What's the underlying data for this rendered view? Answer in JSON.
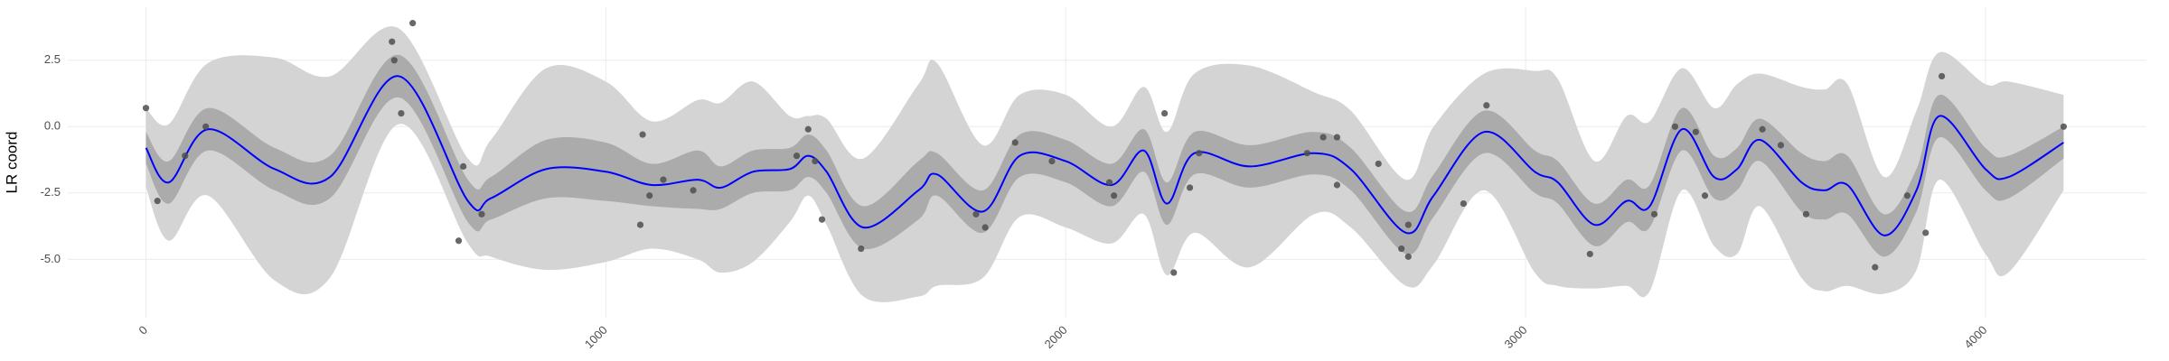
{
  "chart_data": {
    "type": "scatter",
    "y_label": "LR coord",
    "xlim": [
      -170,
      4350
    ],
    "ylim": [
      -7.2,
      4.5
    ],
    "xticks": [
      0,
      1000,
      2000,
      3000,
      4000
    ],
    "yticks": [
      2.5,
      {
        "value": 0,
        "label": "0.0"
      },
      -2.5,
      {
        "value": -5,
        "label": "-5.0"
      }
    ],
    "grid": true,
    "points": {
      "color": "#4d4d4d",
      "x": [
        0,
        25,
        85,
        130,
        535,
        580,
        540,
        555,
        680,
        690,
        730,
        1075,
        1080,
        1095,
        1125,
        1190,
        1415,
        1440,
        1455,
        1470,
        1555,
        1805,
        1825,
        1890,
        1970,
        2095,
        2105,
        2215,
        2235,
        2270,
        2290,
        2525,
        2560,
        2590,
        2590,
        2680,
        2730,
        2745,
        2745,
        2865,
        2915,
        3140,
        3280,
        3325,
        3370,
        3390,
        3515,
        3555,
        3610,
        3760,
        3830,
        3870,
        3905,
        4170
      ],
      "y": [
        0.7,
        -2.8,
        -1.1,
        0.0,
        3.2,
        3.9,
        2.5,
        0.5,
        -4.3,
        -1.5,
        -3.3,
        -3.7,
        -0.3,
        -2.6,
        -2.0,
        -2.4,
        -1.1,
        -0.1,
        -1.3,
        -3.5,
        -4.6,
        -3.3,
        -3.8,
        -0.6,
        -1.3,
        -2.1,
        -2.6,
        0.5,
        -5.5,
        -2.3,
        -1.0,
        -1.0,
        -0.4,
        -2.2,
        -0.4,
        -1.4,
        -4.6,
        -3.7,
        -4.9,
        -2.9,
        0.8,
        -4.8,
        -3.3,
        0.0,
        -0.2,
        -2.6,
        -0.1,
        -0.7,
        -3.3,
        -5.3,
        -2.6,
        -4.0,
        1.9,
        0.0
      ]
    },
    "smooth": {
      "color": "#0000ff",
      "x": [
        0,
        50,
        135,
        280,
        400,
        550,
        700,
        750,
        870,
        1000,
        1100,
        1200,
        1250,
        1320,
        1400,
        1440,
        1480,
        1560,
        1680,
        1720,
        1820,
        1900,
        2000,
        2100,
        2170,
        2220,
        2280,
        2400,
        2540,
        2620,
        2740,
        2800,
        2910,
        3020,
        3070,
        3150,
        3220,
        3270,
        3340,
        3410,
        3460,
        3510,
        3600,
        3650,
        3700,
        3780,
        3850,
        3900,
        4000,
        4050,
        4170
      ],
      "values": [
        -0.8,
        -2.1,
        -0.1,
        -1.6,
        -1.9,
        1.9,
        -2.8,
        -2.7,
        -1.6,
        -1.7,
        -2.2,
        -2.0,
        -2.3,
        -1.7,
        -1.6,
        -1.1,
        -1.7,
        -3.8,
        -2.4,
        -1.8,
        -3.2,
        -1.1,
        -1.3,
        -2.2,
        -0.9,
        -2.9,
        -1.0,
        -1.5,
        -1.0,
        -1.6,
        -4.0,
        -2.6,
        -0.2,
        -1.7,
        -2.1,
        -3.7,
        -2.8,
        -3.0,
        -0.1,
        -1.9,
        -1.6,
        -0.5,
        -2.1,
        -2.4,
        -2.2,
        -4.1,
        -2.4,
        0.4,
        -1.6,
        -1.9,
        -0.6
      ]
    },
    "bands": [
      {
        "color": "#d4d4d4",
        "lower": [
          -2.3,
          -4.3,
          -2.6,
          -5.8,
          -5.7,
          0.1,
          -4.4,
          -4.9,
          -5.4,
          -5.1,
          -4.6,
          -5.0,
          -5.5,
          -5.1,
          -3.6,
          -2.6,
          -3.7,
          -6.4,
          -6.4,
          -6.0,
          -5.7,
          -3.4,
          -3.8,
          -4.4,
          -3.3,
          -5.6,
          -4.0,
          -5.3,
          -3.3,
          -3.8,
          -6.0,
          -5.2,
          -2.4,
          -5.5,
          -6.0,
          -6.1,
          -6.0,
          -6.2,
          -2.4,
          -4.5,
          -4.8,
          -3.0,
          -5.7,
          -6.2,
          -6.0,
          -6.3,
          -5.4,
          -2.0,
          -4.8,
          -5.5,
          -2.4
        ],
        "upper": [
          0.7,
          0.1,
          2.4,
          2.6,
          1.9,
          3.7,
          -1.2,
          -0.5,
          2.2,
          1.7,
          0.2,
          1.0,
          0.9,
          1.7,
          0.4,
          0.4,
          0.3,
          -1.2,
          1.6,
          2.4,
          -0.7,
          1.2,
          1.2,
          0.0,
          1.5,
          -0.2,
          2.0,
          2.3,
          1.3,
          0.6,
          -2.0,
          0.0,
          2.0,
          2.1,
          1.8,
          -1.3,
          0.4,
          0.2,
          2.2,
          0.7,
          1.6,
          2.0,
          1.5,
          1.4,
          1.6,
          -1.9,
          0.6,
          2.8,
          1.6,
          1.7,
          1.2
        ]
      },
      {
        "color": "#ababab",
        "lower": [
          -1.4,
          -2.9,
          -0.9,
          -2.4,
          -2.7,
          1.1,
          -3.6,
          -3.5,
          -2.7,
          -2.8,
          -3.0,
          -3.1,
          -3.1,
          -2.5,
          -2.4,
          -1.9,
          -2.5,
          -4.6,
          -3.5,
          -2.6,
          -4.0,
          -1.9,
          -2.1,
          -3.0,
          -1.7,
          -3.7,
          -1.8,
          -2.3,
          -1.8,
          -2.4,
          -4.8,
          -3.4,
          -1.0,
          -2.5,
          -2.9,
          -4.5,
          -3.6,
          -3.8,
          -0.9,
          -2.7,
          -2.4,
          -1.3,
          -3.2,
          -3.5,
          -3.3,
          -4.9,
          -3.2,
          -0.4,
          -2.4,
          -2.7,
          -1.2
        ],
        "upper": [
          -0.2,
          -1.3,
          0.7,
          -0.8,
          -1.1,
          2.7,
          -2.0,
          -1.9,
          -0.5,
          -0.6,
          -1.4,
          -0.9,
          -1.5,
          -0.9,
          -0.8,
          -0.3,
          -0.9,
          -3.0,
          -1.3,
          -1.0,
          -2.4,
          -0.3,
          -0.5,
          -1.4,
          -0.1,
          -2.1,
          -0.2,
          -0.7,
          -0.2,
          -0.8,
          -3.2,
          -1.8,
          0.6,
          -0.9,
          -1.3,
          -2.9,
          -2.0,
          -2.2,
          0.7,
          -1.1,
          -0.8,
          0.3,
          -1.0,
          -1.3,
          -1.1,
          -3.3,
          -1.6,
          1.2,
          -0.8,
          -1.1,
          0.0
        ]
      }
    ]
  }
}
